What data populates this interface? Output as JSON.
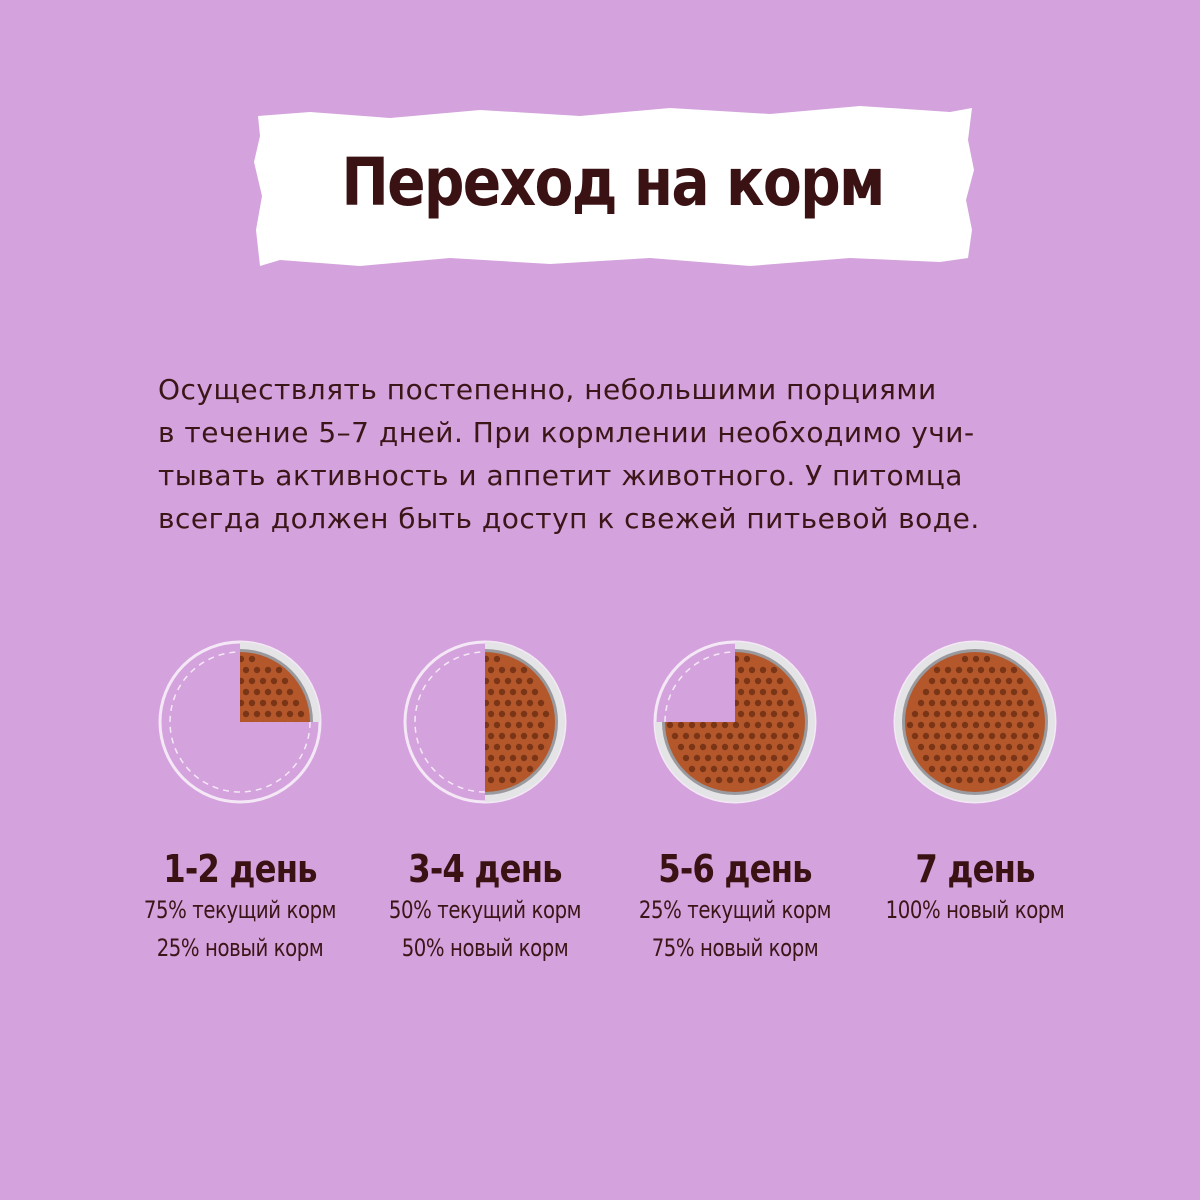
{
  "title": "Переход на корм",
  "description": [
    "Осуществлять постепенно, небольшими порциями",
    "в течение 5–7 дней. При кормлении необходимо учи-",
    "тывать активность и аппетит животного. У питомца",
    "всегда должен быть доступ к свежей питьевой воде."
  ],
  "colors": {
    "background": "#d4a2dc",
    "banner": "#ffffff",
    "text": "#3a1618",
    "kibble": "#b4582c",
    "bowl_rim": "#e4e4e6"
  },
  "stages": [
    {
      "title": "1-2 день",
      "lines": [
        "75% текущий корм",
        "25% новый корм"
      ],
      "new_food_fraction": 0.25
    },
    {
      "title": "3-4 день",
      "lines": [
        "50% текущий корм",
        "50% новый корм"
      ],
      "new_food_fraction": 0.5
    },
    {
      "title": "5-6 день",
      "lines": [
        "25% текущий корм",
        "75% новый корм"
      ],
      "new_food_fraction": 0.75
    },
    {
      "title": "7 день",
      "lines": [
        "100% новый корм"
      ],
      "new_food_fraction": 1.0
    }
  ]
}
